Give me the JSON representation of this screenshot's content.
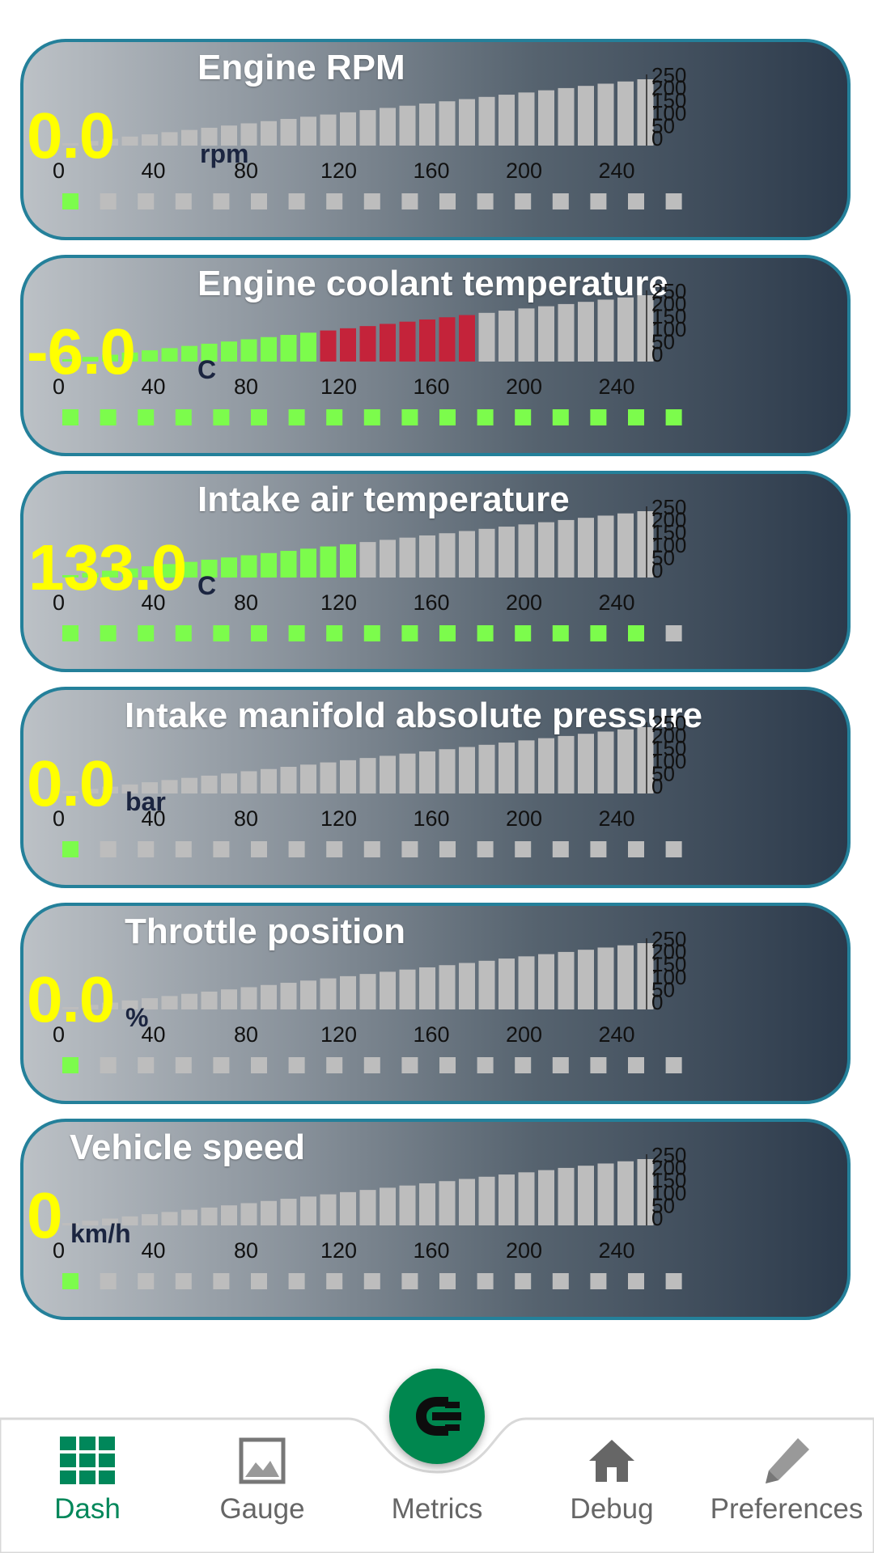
{
  "gauges": [
    {
      "title": "Engine RPM",
      "value": "0.0",
      "unit": "rpm",
      "filled_bars": 0,
      "fill_color": "#7cfc4c",
      "alert_from": null,
      "active_dots": 1
    },
    {
      "title": "Engine coolant temperature",
      "value": "-6.0",
      "unit": "C",
      "filled_bars": 21,
      "fill_color": "#7cfc4c",
      "alert_from": 13,
      "alert_color": "#c4233a",
      "active_dots": 17
    },
    {
      "title": "Intake air temperature",
      "value": "133.0",
      "unit": "C",
      "filled_bars": 15,
      "fill_color": "#7cfc4c",
      "alert_from": null,
      "active_dots": 16
    },
    {
      "title": "Intake manifold absolute pressure",
      "value": "0.0",
      "unit": "bar",
      "filled_bars": 0,
      "fill_color": "#7cfc4c",
      "alert_from": null,
      "active_dots": 1
    },
    {
      "title": "Throttle position",
      "value": "0.0",
      "unit": "%",
      "filled_bars": 0,
      "fill_color": "#7cfc4c",
      "alert_from": null,
      "active_dots": 1
    },
    {
      "title": "Vehicle speed",
      "value": "0",
      "unit": "km/h",
      "filled_bars": 0,
      "fill_color": "#7cfc4c",
      "alert_from": null,
      "active_dots": 1
    }
  ],
  "x_ticks": [
    "0",
    "40",
    "80",
    "120",
    "160",
    "200",
    "240"
  ],
  "y_ticks": [
    "250",
    "200",
    "150",
    "100",
    "50",
    "0"
  ],
  "bar_count": 30,
  "dot_count": 17,
  "inactive_color": "#bdbdbd",
  "nav": {
    "items": [
      {
        "label": "Dash",
        "icon": "grid-icon",
        "active": true
      },
      {
        "label": "Gauge",
        "icon": "image-icon",
        "active": false
      },
      {
        "label": "Metrics",
        "icon": "connection-icon",
        "active": false
      },
      {
        "label": "Debug",
        "icon": "home-icon",
        "active": false
      },
      {
        "label": "Preferences",
        "icon": "pencil-icon",
        "active": false
      }
    ],
    "active_color": "#00875a",
    "fab_color": "#00874f"
  }
}
